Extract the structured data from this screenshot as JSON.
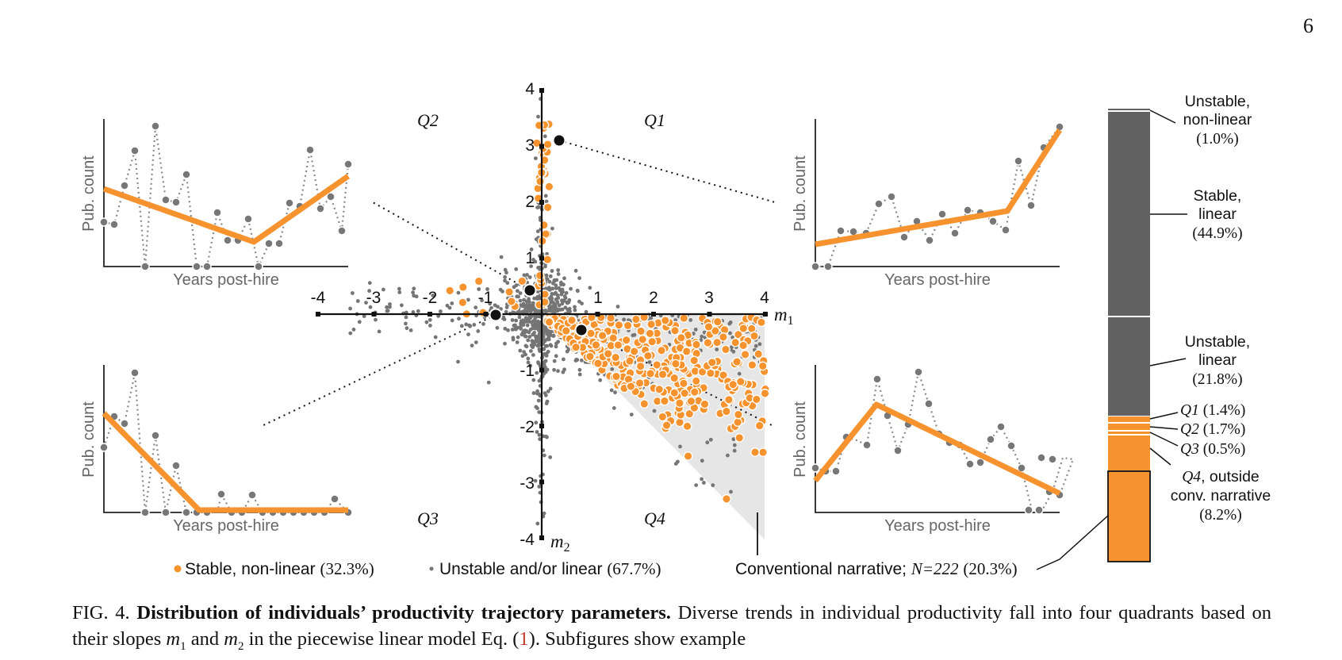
{
  "page_number": "6",
  "colors": {
    "orange": "#f7932e",
    "gray_point": "#757575",
    "dark_bar": "#616161",
    "shade": "#e6e6e6"
  },
  "scatter": {
    "x_ticks": [
      "-4",
      "-3",
      "-2",
      "-1",
      "1",
      "2",
      "3",
      "4"
    ],
    "y_ticks": [
      "4",
      "3",
      "2",
      "1",
      "-1",
      "-2",
      "-3",
      "-4"
    ],
    "x_axis_label": "m",
    "x_axis_sub": "1",
    "y_axis_label": "m",
    "y_axis_sub": "2",
    "quadrants": {
      "q1": "Q1",
      "q2": "Q2",
      "q3": "Q3",
      "q4": "Q4"
    }
  },
  "insets": {
    "ylabel": "Pub. count",
    "xlabel": "Years post-hire"
  },
  "legend": {
    "stable_label": "Stable, non-linear",
    "stable_pct": "(32.3%)",
    "unstable_label": "Unstable and/or linear",
    "unstable_pct": "(67.7%)",
    "conv_label": "Conventional narrative;",
    "conv_n": "N=222",
    "conv_pct": "(20.3%)"
  },
  "bar": {
    "unstable_nonlinear_1": "Unstable,",
    "unstable_nonlinear_2": "non-linear",
    "unstable_nonlinear_pct": "(1.0%)",
    "stable_linear_1": "Stable,",
    "stable_linear_2": "linear",
    "stable_linear_pct": "(44.9%)",
    "unstable_linear_1": "Unstable,",
    "unstable_linear_2": "linear",
    "unstable_linear_pct": "(21.8%)",
    "q1": "Q1",
    "q1_pct": "(1.4%)",
    "q2": "Q2",
    "q2_pct": "(1.7%)",
    "q3": "Q3",
    "q3_pct": "(0.5%)",
    "q4": "Q4",
    "q4_rest": ", outside",
    "q4_line2": "conv. narrative",
    "q4_pct": "(8.2%)"
  },
  "caption": {
    "fig": "FIG. 4.",
    "title": "Distribution of individuals’ productivity trajectory parameters.",
    "text1": "Diverse trends in individual productivity fall into four quadrants based on their slopes",
    "m1": "m1",
    "and": "and",
    "m2": "m2",
    "text2": "in the piecewise linear model Eq. (",
    "ref": "1",
    "text3": "). Subfigures show example"
  }
}
